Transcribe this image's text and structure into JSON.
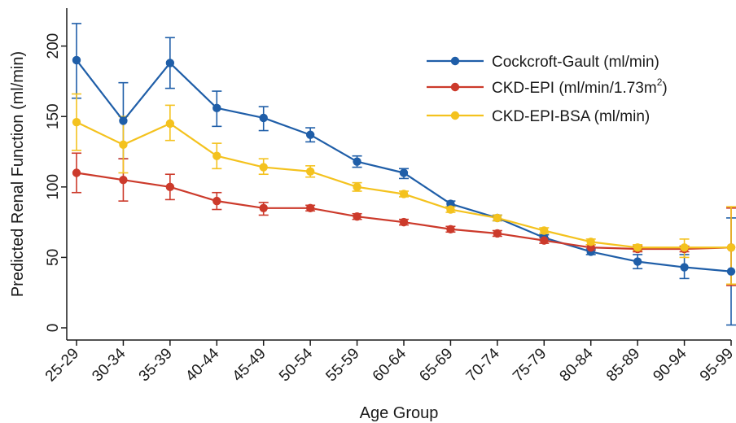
{
  "chart_data": {
    "type": "line",
    "title": "",
    "xlabel": "Age Group",
    "ylabel": "Predicted Renal Function (ml/min)",
    "ylim": [
      0,
      220
    ],
    "yticks": [
      0,
      50,
      100,
      150,
      200
    ],
    "grid": false,
    "legend_position": "top-right",
    "categories": [
      "25-29",
      "30-34",
      "35-39",
      "40-44",
      "45-49",
      "50-54",
      "55-59",
      "60-64",
      "65-69",
      "70-74",
      "75-79",
      "80-84",
      "85-89",
      "90-94",
      "95-99"
    ],
    "series": [
      {
        "name": "Cockcroft-Gault (ml/min)",
        "color": "#1f5ea8",
        "values": [
          190,
          147,
          188,
          156,
          149,
          137,
          118,
          110,
          88,
          78,
          64,
          54,
          47,
          43,
          40
        ],
        "lower": [
          163,
          120,
          170,
          143,
          140,
          132,
          114,
          106,
          86,
          76,
          62,
          52,
          42,
          35,
          2
        ],
        "upper": [
          216,
          174,
          206,
          168,
          157,
          142,
          122,
          113,
          90,
          80,
          66,
          56,
          52,
          52,
          78
        ]
      },
      {
        "name": "CKD-EPI (ml/min/1.73m",
        "name_sup": "2",
        "name_suffix": ")",
        "color": "#cc3a2b",
        "values": [
          110,
          105,
          100,
          90,
          85,
          85,
          79,
          75,
          70,
          67,
          62,
          57,
          56,
          56,
          57
        ],
        "lower": [
          96,
          90,
          91,
          84,
          80,
          83,
          77,
          73,
          68,
          65,
          60,
          55,
          54,
          54,
          30
        ],
        "upper": [
          124,
          120,
          109,
          96,
          89,
          87,
          81,
          77,
          72,
          69,
          64,
          59,
          58,
          58,
          85
        ]
      },
      {
        "name": "CKD-EPI-BSA (ml/min)",
        "color": "#f4c21e",
        "values": [
          146,
          130,
          145,
          122,
          114,
          111,
          100,
          95,
          84,
          78,
          69,
          61,
          57,
          57,
          57
        ],
        "lower": [
          126,
          110,
          133,
          113,
          109,
          107,
          97,
          93,
          82,
          76,
          67,
          59,
          55,
          50,
          31
        ],
        "upper": [
          166,
          150,
          158,
          131,
          120,
          115,
          103,
          97,
          86,
          80,
          71,
          63,
          59,
          63,
          86
        ]
      }
    ]
  }
}
